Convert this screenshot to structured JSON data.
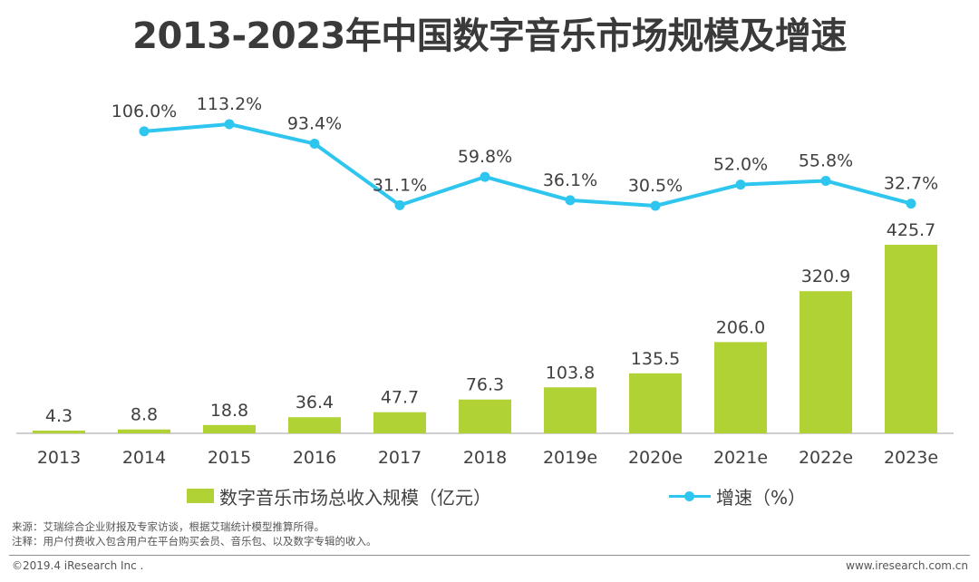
{
  "title": "2013-2023年中国数字音乐市场规模及增速",
  "chart_data": {
    "type": "bar",
    "categories": [
      "2013",
      "2014",
      "2015",
      "2016",
      "2017",
      "2018",
      "2019e",
      "2020e",
      "2021e",
      "2022e",
      "2023e"
    ],
    "series": [
      {
        "name": "数字音乐市场总收入规模（亿元）",
        "type": "bar",
        "values": [
          4.3,
          8.8,
          18.8,
          36.4,
          47.7,
          76.3,
          103.8,
          135.5,
          206.0,
          320.9,
          425.7
        ],
        "labels": [
          "4.3",
          "8.8",
          "18.8",
          "36.4",
          "47.7",
          "76.3",
          "103.8",
          "135.5",
          "206.0",
          "320.9",
          "425.7"
        ],
        "color": "#b1d234"
      },
      {
        "name": "增速（%）",
        "type": "line",
        "values": [
          null,
          106.0,
          113.2,
          93.4,
          31.1,
          59.8,
          36.1,
          30.5,
          52.0,
          55.8,
          32.7
        ],
        "labels": [
          "",
          "106.0%",
          "113.2%",
          "93.4%",
          "31.1%",
          "59.8%",
          "36.1%",
          "30.5%",
          "52.0%",
          "55.8%",
          "32.7%"
        ],
        "color": "#2ec5ef"
      }
    ],
    "legend": "bottom",
    "grid": false
  },
  "legend": {
    "bar_label": "数字音乐市场总收入规模（亿元）",
    "line_label": "增速（%）"
  },
  "notes": {
    "source": "来源：艾瑞综合企业财报及专家访谈，根据艾瑞统计模型推算所得。",
    "annotation": "注释：用户付费收入包含用户在平台购买会员、音乐包、以及数字专辑的收入。"
  },
  "footer": {
    "copyright": "©2019.4 iResearch Inc .",
    "website": "www.iresearch.com.cn"
  }
}
